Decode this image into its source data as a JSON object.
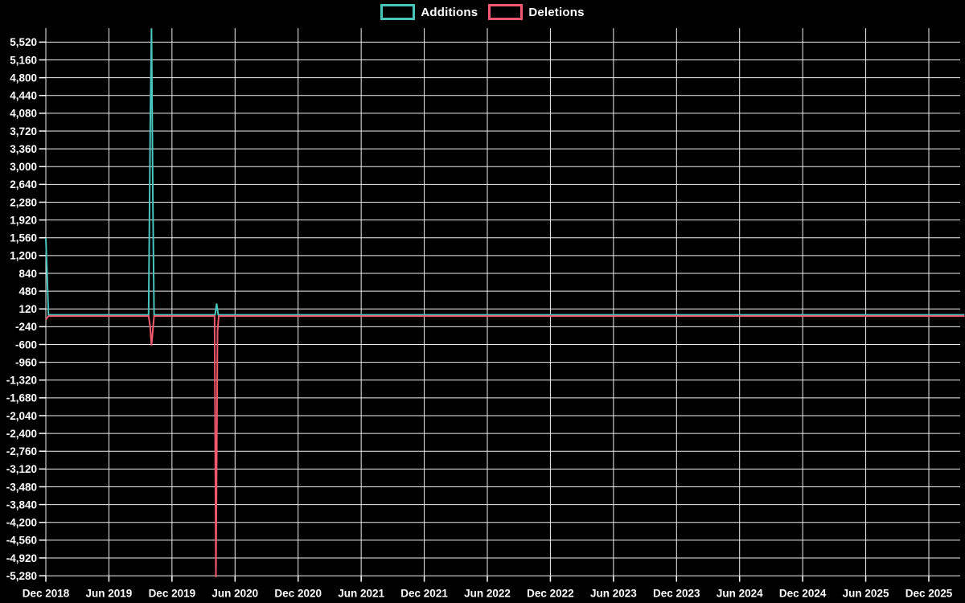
{
  "page": {
    "background": "#000000",
    "text_color": "#ffffff",
    "grid_color": "#efefef"
  },
  "legend": {
    "items": [
      {
        "label": "Additions",
        "color": "#49c5be"
      },
      {
        "label": "Deletions",
        "color": "#f2596e"
      }
    ]
  },
  "chart_data": {
    "type": "line",
    "title": "",
    "xlabel": "",
    "ylabel": "",
    "legend_position": "top-center",
    "grid": {
      "show": true,
      "color": "#efefef"
    },
    "x_axis": {
      "tick_labels": [
        "Dec 2018",
        "Jun 2019",
        "Dec 2019",
        "Jun 2020",
        "Dec 2020",
        "Jun 2021",
        "Dec 2021",
        "Jun 2022",
        "Dec 2022",
        "Jun 2023",
        "Dec 2023",
        "Jun 2024",
        "Dec 2024",
        "Jun 2025",
        "Dec 2025"
      ],
      "months_per_tick": 6,
      "range_months": [
        0,
        87.4
      ]
    },
    "y_axis": {
      "min": -5280,
      "max": 5520,
      "step": 360,
      "tick_labels": [
        "5,520",
        "5,160",
        "4,800",
        "4,440",
        "4,080",
        "3,720",
        "3,360",
        "3,000",
        "2,640",
        "2,280",
        "1,920",
        "1,560",
        "1,200",
        "840",
        "480",
        "120",
        "-240",
        "-600",
        "-960",
        "-1,320",
        "-1,680",
        "-2,040",
        "-2,400",
        "-2,760",
        "-3,120",
        "-3,480",
        "-3,840",
        "-4,200",
        "-4,560",
        "-4,920",
        "-5,280"
      ]
    },
    "series": [
      {
        "name": "Additions",
        "color": "#49c5be",
        "points_months_value": [
          [
            0,
            1556
          ],
          [
            0.25,
            0
          ],
          [
            9.78,
            0
          ],
          [
            9.93,
            3770
          ],
          [
            10.05,
            5800
          ],
          [
            10.18,
            2290
          ],
          [
            10.3,
            0
          ],
          [
            16.1,
            0
          ],
          [
            16.25,
            230
          ],
          [
            16.4,
            0
          ],
          [
            87.4,
            0
          ]
        ]
      },
      {
        "name": "Deletions",
        "color": "#f2596e",
        "points_months_value": [
          [
            0,
            -96
          ],
          [
            0.25,
            -25
          ],
          [
            9.78,
            -25
          ],
          [
            9.93,
            -250
          ],
          [
            10.05,
            -620
          ],
          [
            10.18,
            -300
          ],
          [
            10.3,
            -25
          ],
          [
            16.05,
            -25
          ],
          [
            16.18,
            -5310
          ],
          [
            16.33,
            -330
          ],
          [
            16.45,
            -25
          ],
          [
            87.4,
            -25
          ]
        ]
      }
    ]
  }
}
